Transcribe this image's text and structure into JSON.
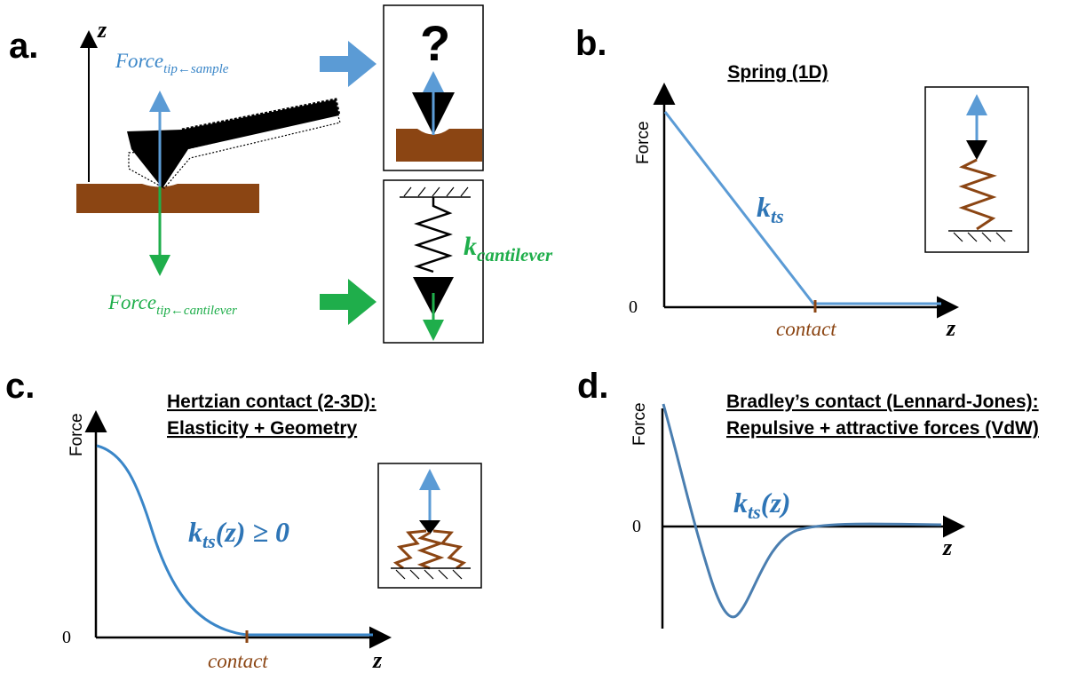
{
  "colors": {
    "blue": "#5b9bd5",
    "blue_dark": "#2e75b6",
    "green": "#1fae4b",
    "brown": "#8b4513",
    "black": "#000000"
  },
  "panel_a": {
    "letter": "a.",
    "axis_label": "z",
    "force_sample": "Force",
    "force_sample_sub": "tip←sample",
    "force_cantilever": "Force",
    "force_cantilever_sub": "tip←cantilever",
    "question": "?",
    "k_main": "k",
    "k_sub": "cantilever"
  },
  "panel_b": {
    "letter": "b.",
    "title": "Spring (1D)",
    "ylabel": "Force",
    "zero": "0",
    "xlabel": "z",
    "contact": "contact",
    "annotation": "k",
    "annotation_sub": "ts"
  },
  "panel_c": {
    "letter": "c.",
    "title_1": "Hertzian contact (2-3D):",
    "title_2": "Elasticity + Geometry",
    "ylabel": "Force",
    "zero": "0",
    "xlabel": "z",
    "contact": "contact",
    "annotation": "k",
    "annotation_sub": "ts",
    "annotation_tail": "(z) ≥ 0"
  },
  "panel_d": {
    "letter": "d.",
    "title_1": "Bradley’s contact (Lennard-Jones):",
    "title_2": "Repulsive + attractive forces (VdW)",
    "ylabel": "Force",
    "zero": "0",
    "xlabel": "z",
    "annotation": "k",
    "annotation_sub": "ts",
    "annotation_tail": "(z)"
  }
}
